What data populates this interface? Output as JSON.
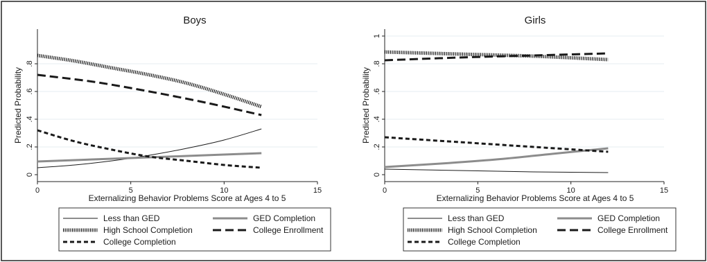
{
  "chart_data": [
    {
      "type": "line",
      "title": "Boys",
      "xlabel": "Externalizing Behavior Problems Score at Ages 4 to 5",
      "ylabel": "Predicted Probability",
      "xlim": [
        0,
        15
      ],
      "ylim": [
        0,
        1
      ],
      "xticks": [
        "0",
        "5",
        "10",
        "15"
      ],
      "yticks": [
        "0",
        ".2",
        ".4",
        ".6",
        ".8"
      ],
      "grid": true,
      "legend_position": "bottom",
      "series": [
        {
          "name": "Less than GED",
          "x": [
            0,
            2,
            4,
            6,
            8,
            10,
            12
          ],
          "y": [
            0.05,
            0.07,
            0.1,
            0.14,
            0.19,
            0.25,
            0.33
          ]
        },
        {
          "name": "GED Completion",
          "x": [
            0,
            4,
            8,
            12
          ],
          "y": [
            0.095,
            0.115,
            0.135,
            0.155
          ]
        },
        {
          "name": "High School Completion",
          "x": [
            0,
            2,
            4,
            6,
            8,
            10,
            12
          ],
          "y": [
            0.86,
            0.82,
            0.77,
            0.72,
            0.66,
            0.58,
            0.49
          ]
        },
        {
          "name": "College Enrollment",
          "x": [
            0,
            3,
            6,
            9,
            12
          ],
          "y": [
            0.72,
            0.67,
            0.6,
            0.52,
            0.43
          ]
        },
        {
          "name": "College Completion",
          "x": [
            0,
            2,
            4,
            6,
            8,
            10,
            12
          ],
          "y": [
            0.32,
            0.24,
            0.18,
            0.13,
            0.1,
            0.07,
            0.05
          ]
        }
      ]
    },
    {
      "type": "line",
      "title": "Girls",
      "xlabel": "Externalizing Behavior Problems Score at Ages 4 to 5",
      "ylabel": "Predicted Probability",
      "xlim": [
        0,
        15
      ],
      "ylim": [
        0,
        1
      ],
      "xticks": [
        "0",
        "5",
        "10",
        "15"
      ],
      "yticks": [
        "0",
        ".2",
        ".4",
        ".6",
        ".8",
        "1"
      ],
      "grid": true,
      "legend_position": "bottom",
      "series": [
        {
          "name": "Less than GED",
          "x": [
            0,
            4,
            8,
            12
          ],
          "y": [
            0.04,
            0.03,
            0.02,
            0.015
          ]
        },
        {
          "name": "GED Completion",
          "x": [
            0,
            3,
            6,
            9,
            12
          ],
          "y": [
            0.055,
            0.08,
            0.11,
            0.15,
            0.19
          ]
        },
        {
          "name": "High School Completion",
          "x": [
            0,
            4,
            8,
            12
          ],
          "y": [
            0.885,
            0.87,
            0.855,
            0.83
          ]
        },
        {
          "name": "College Enrollment",
          "x": [
            0,
            4,
            8,
            12
          ],
          "y": [
            0.825,
            0.845,
            0.86,
            0.875
          ]
        },
        {
          "name": "College Completion",
          "x": [
            0,
            4,
            8,
            12
          ],
          "y": [
            0.27,
            0.235,
            0.2,
            0.165
          ]
        }
      ]
    }
  ],
  "series_styles": [
    {
      "name": "Less than GED",
      "color": "#1a1a1a",
      "width": 1,
      "dash": ""
    },
    {
      "name": "GED Completion",
      "color": "#8c8c8c",
      "width": 3,
      "dash": ""
    },
    {
      "name": "High School Completion",
      "color": "#1a1a1a",
      "width": 5,
      "dash": "1.2 1.4"
    },
    {
      "name": "College Enrollment",
      "color": "#1a1a1a",
      "width": 3,
      "dash": "12 6"
    },
    {
      "name": "College Completion",
      "color": "#1a1a1a",
      "width": 3,
      "dash": "6 4"
    }
  ]
}
